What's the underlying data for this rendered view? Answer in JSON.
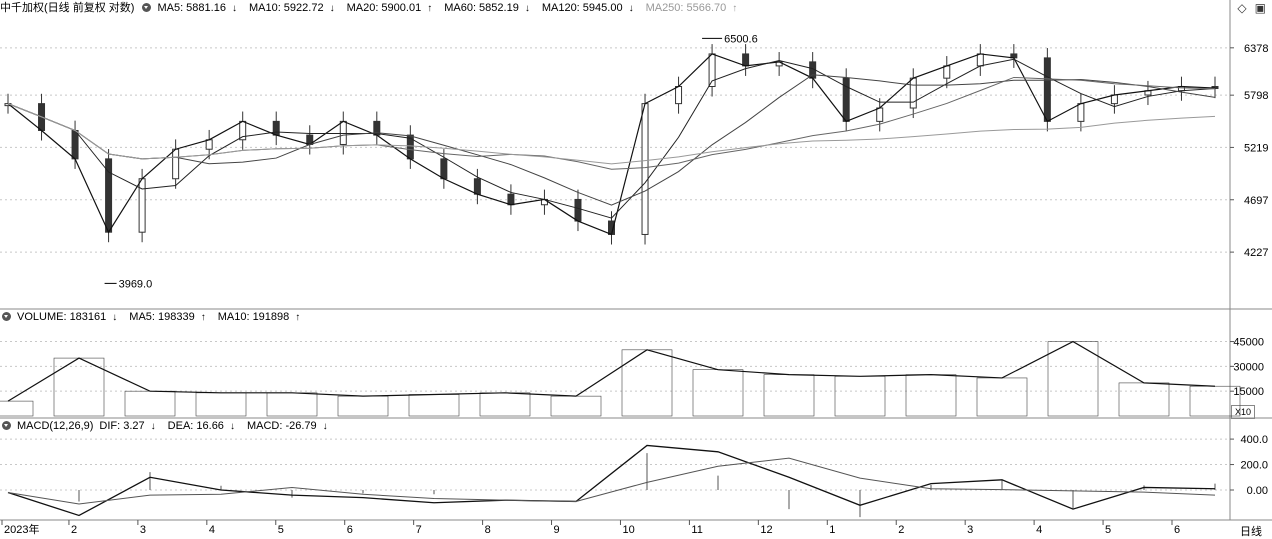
{
  "price_panel": {
    "title": "中千加权(日线 前复权 对数)",
    "ma": [
      {
        "label": "MA5: 5881.16",
        "dir": "↓"
      },
      {
        "label": "MA10: 5922.72",
        "dir": "↓"
      },
      {
        "label": "MA20: 5900.01",
        "dir": "↑"
      },
      {
        "label": "MA60: 5852.19",
        "dir": "↓"
      },
      {
        "label": "MA120: 5945.00",
        "dir": "↓"
      },
      {
        "label": "MA250: 5566.70",
        "dir": "↑"
      }
    ],
    "high_label": "6500.6",
    "low_label": "3969.0",
    "y_ticks": [
      "6378",
      "5798",
      "5219",
      "4697",
      "4227"
    ]
  },
  "volume_panel": {
    "title": "VOLUME: 183161",
    "title_dir": "↓",
    "ma5": "MA5: 198339",
    "ma5_dir": "↑",
    "ma10": "MA10: 191898",
    "ma10_dir": "↑",
    "y_ticks": [
      "45000",
      "30000",
      "15000"
    ],
    "unit": "X10"
  },
  "macd_panel": {
    "title": "MACD(12,26,9)",
    "dif": "DIF: 3.27",
    "dif_dir": "↓",
    "dea": "DEA: 16.66",
    "dea_dir": "↓",
    "macd": "MACD: -26.79",
    "macd_dir": "↓",
    "y_ticks": [
      "400.0",
      "200.0",
      "0.00"
    ]
  },
  "x_axis": {
    "labels": [
      "2023年",
      "2",
      "3",
      "4",
      "5",
      "6",
      "7",
      "8",
      "9",
      "10",
      "11",
      "12",
      "1",
      "2",
      "3",
      "4",
      "5",
      "6"
    ],
    "period": "日线"
  },
  "colors": {
    "grid": "#c8c8c8",
    "line": "#111111",
    "ma250": "#999999",
    "bar": "#444444"
  },
  "chart_data": {
    "type": "candlestick",
    "title": "中千加权(日线 前复权 对数)",
    "scale": "log",
    "x_month_labels": [
      "2023年",
      "2",
      "3",
      "4",
      "5",
      "6",
      "7",
      "8",
      "9",
      "10",
      "11",
      "12",
      "1",
      "2",
      "3",
      "4",
      "5",
      "6"
    ],
    "price_ticks": [
      6378,
      5798,
      5219,
      4697,
      4227
    ],
    "close_series": [
      {
        "month": "2023-01",
        "close": 5700
      },
      {
        "month": "2023-01",
        "close": 5400
      },
      {
        "month": "2023-01",
        "close": 5100
      },
      {
        "month": "2023-02",
        "close": 4400
      },
      {
        "month": "2023-02",
        "close": 4900
      },
      {
        "month": "2023-03",
        "close": 5200
      },
      {
        "month": "2023-03",
        "close": 5300
      },
      {
        "month": "2023-04",
        "close": 5500
      },
      {
        "month": "2023-04",
        "close": 5350
      },
      {
        "month": "2023-05",
        "close": 5250
      },
      {
        "month": "2023-05",
        "close": 5500
      },
      {
        "month": "2023-06",
        "close": 5350
      },
      {
        "month": "2023-06",
        "close": 5100
      },
      {
        "month": "2023-07",
        "close": 4900
      },
      {
        "month": "2023-07",
        "close": 4750
      },
      {
        "month": "2023-08",
        "close": 4650
      },
      {
        "month": "2023-08",
        "close": 4700
      },
      {
        "month": "2023-09",
        "close": 4500
      },
      {
        "month": "2023-09",
        "close": 4380
      },
      {
        "month": "2023-10",
        "close": 5700
      },
      {
        "month": "2023-10",
        "close": 5900
      },
      {
        "month": "2023-11",
        "close": 6300
      },
      {
        "month": "2023-11",
        "close": 6150
      },
      {
        "month": "2023-12",
        "close": 6200
      },
      {
        "month": "2023-12",
        "close": 6000
      },
      {
        "month": "2024-01",
        "close": 5500
      },
      {
        "month": "2024-01",
        "close": 5650
      },
      {
        "month": "2024-02",
        "close": 6000
      },
      {
        "month": "2024-02",
        "close": 6150
      },
      {
        "month": "2024-03",
        "close": 6300
      },
      {
        "month": "2024-03",
        "close": 6250
      },
      {
        "month": "2024-04",
        "close": 5500
      },
      {
        "month": "2024-04",
        "close": 5700
      },
      {
        "month": "2024-05",
        "close": 5800
      },
      {
        "month": "2024-05",
        "close": 5850
      },
      {
        "month": "2024-06",
        "close": 5900
      },
      {
        "month": "2024-06",
        "close": 5881
      }
    ],
    "annotations": [
      {
        "label": "6500.6",
        "type": "high"
      },
      {
        "label": "3969.0",
        "type": "low"
      }
    ],
    "ma_values": {
      "MA5": 5881.16,
      "MA10": 5922.72,
      "MA20": 5900.01,
      "MA60": 5852.19,
      "MA120": 5945.0,
      "MA250": 5566.7
    },
    "volume": {
      "last": 183161,
      "MA5": 198339,
      "MA10": 191898,
      "ticks": [
        45000,
        30000,
        15000
      ],
      "unit": "X10",
      "approx_by_month": [
        9000,
        35000,
        15000,
        14000,
        14000,
        12000,
        13000,
        14000,
        12000,
        40000,
        28000,
        25000,
        24000,
        25000,
        23000,
        45000,
        20000,
        18000
      ]
    },
    "macd": {
      "params": [
        12,
        26,
        9
      ],
      "DIF": 3.27,
      "DEA": 16.66,
      "MACD": -26.79,
      "ticks": [
        400,
        200,
        0
      ],
      "dif_approx_by_month": [
        -20,
        -200,
        100,
        0,
        -40,
        -60,
        -100,
        -80,
        -90,
        350,
        300,
        100,
        -120,
        50,
        80,
        -150,
        20,
        10
      ]
    }
  }
}
